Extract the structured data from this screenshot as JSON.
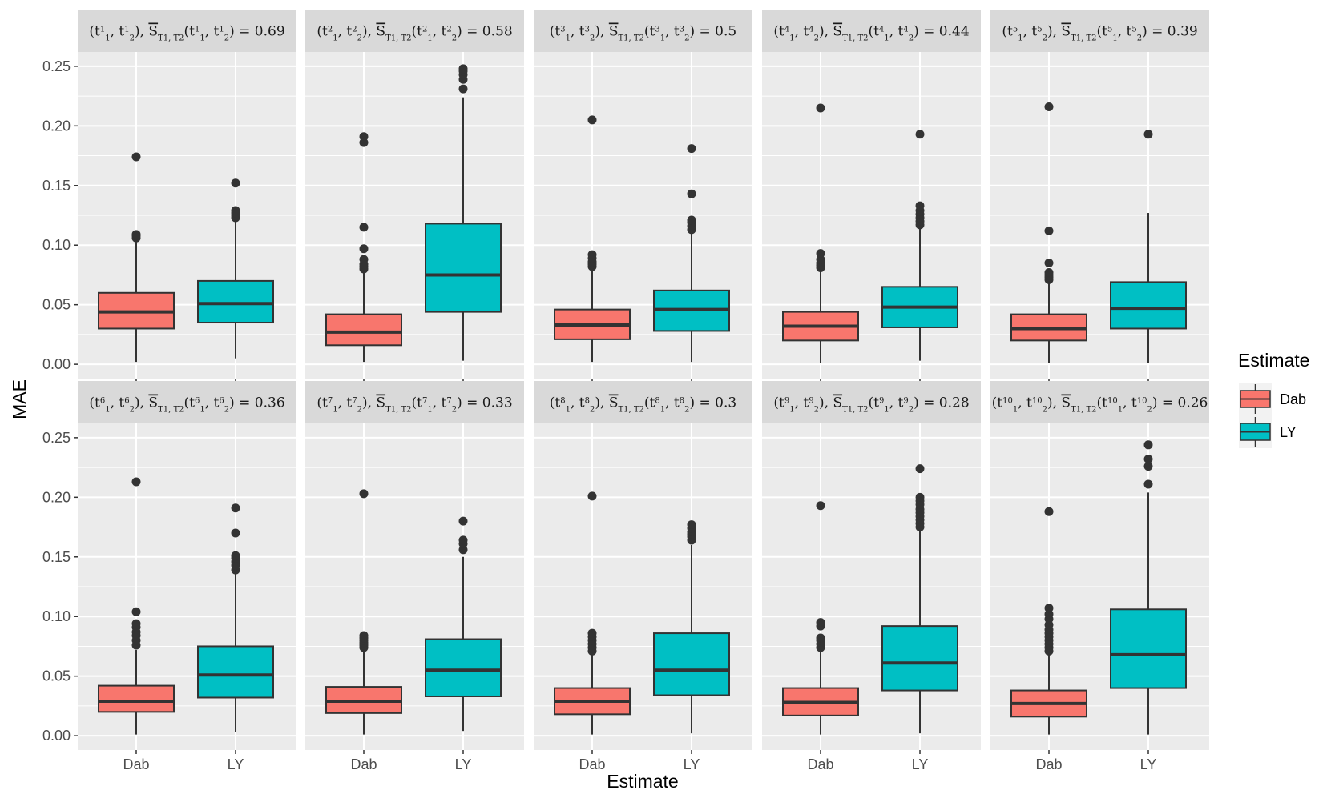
{
  "chart_data": {
    "type": "boxplot",
    "xlabel": "Estimate",
    "ylabel": "MAE",
    "ylim": [
      -0.012,
      0.262
    ],
    "yticks": [
      0.0,
      0.05,
      0.1,
      0.15,
      0.2,
      0.25
    ],
    "ytick_labels": [
      "0.00",
      "0.05",
      "0.10",
      "0.15",
      "0.20",
      "0.25"
    ],
    "categories": [
      "Dab",
      "LY"
    ],
    "colors": {
      "Dab": "#F8766D",
      "LY": "#00BFC4"
    },
    "legend": {
      "title": "Estimate",
      "position": "right",
      "entries": [
        "Dab",
        "LY"
      ]
    },
    "panels": [
      {
        "k": "1",
        "value": "0.69",
        "boxes": [
          {
            "group": "Dab",
            "q1": 0.03,
            "median": 0.044,
            "q3": 0.06,
            "whisker_low": 0.002,
            "whisker_high": 0.104,
            "outliers": [
              0.106,
              0.108,
              0.109,
              0.174
            ]
          },
          {
            "group": "LY",
            "q1": 0.035,
            "median": 0.051,
            "q3": 0.07,
            "whisker_low": 0.005,
            "whisker_high": 0.121,
            "outliers": [
              0.123,
              0.125,
              0.127,
              0.129,
              0.152
            ]
          }
        ]
      },
      {
        "k": "2",
        "value": "0.58",
        "boxes": [
          {
            "group": "Dab",
            "q1": 0.016,
            "median": 0.027,
            "q3": 0.042,
            "whisker_low": 0.002,
            "whisker_high": 0.078,
            "outliers": [
              0.08,
              0.082,
              0.084,
              0.088,
              0.097,
              0.115,
              0.186,
              0.191
            ]
          },
          {
            "group": "LY",
            "q1": 0.044,
            "median": 0.075,
            "q3": 0.118,
            "whisker_low": 0.003,
            "whisker_high": 0.224,
            "outliers": [
              0.231,
              0.239,
              0.243,
              0.246,
              0.248
            ]
          }
        ]
      },
      {
        "k": "3",
        "value": "0.5",
        "boxes": [
          {
            "group": "Dab",
            "q1": 0.021,
            "median": 0.033,
            "q3": 0.046,
            "whisker_low": 0.002,
            "whisker_high": 0.08,
            "outliers": [
              0.082,
              0.084,
              0.086,
              0.089,
              0.092,
              0.205
            ]
          },
          {
            "group": "LY",
            "q1": 0.028,
            "median": 0.046,
            "q3": 0.062,
            "whisker_low": 0.002,
            "whisker_high": 0.11,
            "outliers": [
              0.113,
              0.116,
              0.119,
              0.121,
              0.143,
              0.181
            ]
          }
        ]
      },
      {
        "k": "4",
        "value": "0.44",
        "boxes": [
          {
            "group": "Dab",
            "q1": 0.02,
            "median": 0.032,
            "q3": 0.044,
            "whisker_low": 0.001,
            "whisker_high": 0.078,
            "outliers": [
              0.081,
              0.083,
              0.085,
              0.088,
              0.093,
              0.215
            ]
          },
          {
            "group": "LY",
            "q1": 0.031,
            "median": 0.048,
            "q3": 0.065,
            "whisker_low": 0.003,
            "whisker_high": 0.114,
            "outliers": [
              0.117,
              0.12,
              0.123,
              0.126,
              0.129,
              0.133,
              0.193
            ]
          }
        ]
      },
      {
        "k": "5",
        "value": "0.39",
        "boxes": [
          {
            "group": "Dab",
            "q1": 0.02,
            "median": 0.03,
            "q3": 0.042,
            "whisker_low": 0.001,
            "whisker_high": 0.068,
            "outliers": [
              0.071,
              0.073,
              0.075,
              0.077,
              0.085,
              0.112,
              0.216
            ]
          },
          {
            "group": "LY",
            "q1": 0.03,
            "median": 0.047,
            "q3": 0.069,
            "whisker_low": 0.001,
            "whisker_high": 0.127,
            "outliers": [
              0.193
            ]
          }
        ]
      },
      {
        "k": "6",
        "value": "0.36",
        "boxes": [
          {
            "group": "Dab",
            "q1": 0.02,
            "median": 0.029,
            "q3": 0.042,
            "whisker_low": 0.001,
            "whisker_high": 0.072,
            "outliers": [
              0.076,
              0.08,
              0.084,
              0.087,
              0.091,
              0.094,
              0.104,
              0.213
            ]
          },
          {
            "group": "LY",
            "q1": 0.032,
            "median": 0.051,
            "q3": 0.075,
            "whisker_low": 0.003,
            "whisker_high": 0.136,
            "outliers": [
              0.139,
              0.143,
              0.146,
              0.149,
              0.151,
              0.17,
              0.191
            ]
          }
        ]
      },
      {
        "k": "7",
        "value": "0.33",
        "boxes": [
          {
            "group": "Dab",
            "q1": 0.019,
            "median": 0.029,
            "q3": 0.041,
            "whisker_low": 0.001,
            "whisker_high": 0.072,
            "outliers": [
              0.074,
              0.076,
              0.078,
              0.08,
              0.082,
              0.084,
              0.203
            ]
          },
          {
            "group": "LY",
            "q1": 0.033,
            "median": 0.055,
            "q3": 0.081,
            "whisker_low": 0.004,
            "whisker_high": 0.15,
            "outliers": [
              0.156,
              0.161,
              0.164,
              0.18
            ]
          }
        ]
      },
      {
        "k": "8",
        "value": "0.3",
        "boxes": [
          {
            "group": "Dab",
            "q1": 0.018,
            "median": 0.029,
            "q3": 0.04,
            "whisker_low": 0.001,
            "whisker_high": 0.068,
            "outliers": [
              0.071,
              0.074,
              0.077,
              0.08,
              0.083,
              0.086,
              0.201
            ]
          },
          {
            "group": "LY",
            "q1": 0.034,
            "median": 0.055,
            "q3": 0.086,
            "whisker_low": 0.002,
            "whisker_high": 0.16,
            "outliers": [
              0.164,
              0.167,
              0.169,
              0.171,
              0.174,
              0.177
            ]
          }
        ]
      },
      {
        "k": "9",
        "value": "0.28",
        "boxes": [
          {
            "group": "Dab",
            "q1": 0.017,
            "median": 0.028,
            "q3": 0.04,
            "whisker_low": 0.001,
            "whisker_high": 0.07,
            "outliers": [
              0.074,
              0.077,
              0.08,
              0.082,
              0.092,
              0.095,
              0.193
            ]
          },
          {
            "group": "LY",
            "q1": 0.038,
            "median": 0.061,
            "q3": 0.092,
            "whisker_low": 0.002,
            "whisker_high": 0.172,
            "outliers": [
              0.175,
              0.178,
              0.181,
              0.184,
              0.187,
              0.19,
              0.194,
              0.197,
              0.2,
              0.224
            ]
          }
        ]
      },
      {
        "k": "10",
        "value": "0.26",
        "boxes": [
          {
            "group": "Dab",
            "q1": 0.016,
            "median": 0.027,
            "q3": 0.038,
            "whisker_low": 0.001,
            "whisker_high": 0.068,
            "outliers": [
              0.071,
              0.074,
              0.077,
              0.08,
              0.083,
              0.086,
              0.089,
              0.093,
              0.098,
              0.102,
              0.107,
              0.188
            ]
          },
          {
            "group": "LY",
            "q1": 0.04,
            "median": 0.068,
            "q3": 0.106,
            "whisker_low": 0.001,
            "whisker_high": 0.204,
            "outliers": [
              0.211,
              0.226,
              0.232,
              0.244
            ]
          }
        ]
      }
    ]
  }
}
